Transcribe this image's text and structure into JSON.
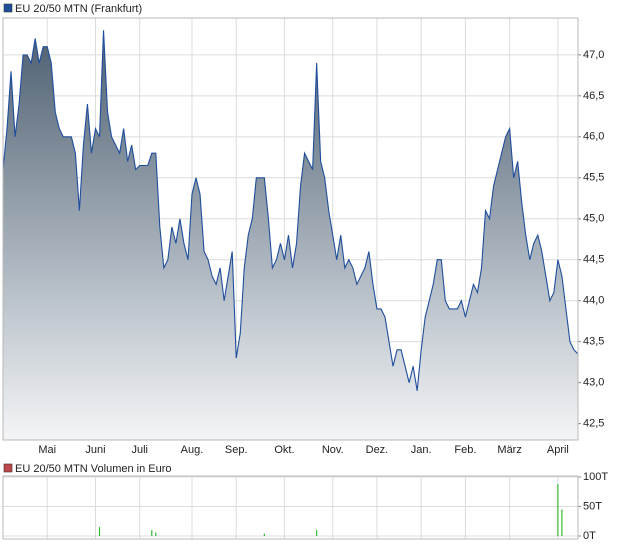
{
  "chart_data": [
    {
      "type": "area",
      "categories": [
        null,
        null,
        null,
        null,
        null,
        null,
        null,
        null,
        null,
        null,
        null,
        "Mai",
        null,
        null,
        null,
        null,
        null,
        null,
        null,
        null,
        null,
        null,
        null,
        "Juni",
        null,
        null,
        null,
        null,
        null,
        null,
        null,
        null,
        null,
        null,
        "Juli",
        null,
        null,
        null,
        null,
        null,
        null,
        null,
        null,
        null,
        null,
        null,
        null,
        "Aug.",
        null,
        null,
        null,
        null,
        null,
        null,
        null,
        null,
        null,
        null,
        "Sep.",
        null,
        null,
        null,
        null,
        null,
        null,
        null,
        null,
        null,
        null,
        null,
        "Okt.",
        null,
        null,
        null,
        null,
        null,
        null,
        null,
        null,
        null,
        null,
        null,
        "Nov.",
        null,
        null,
        null,
        null,
        null,
        null,
        null,
        null,
        null,
        null,
        "Dez.",
        null,
        null,
        null,
        null,
        null,
        null,
        null,
        null,
        null,
        null,
        "Jan.",
        null,
        null,
        null,
        null,
        null,
        null,
        null,
        null,
        null,
        null,
        "Feb.",
        null,
        null,
        null,
        null,
        null,
        null,
        null,
        null,
        null,
        null,
        "März",
        null,
        null,
        null,
        null,
        null,
        null,
        null,
        null,
        null,
        null,
        null,
        "April",
        null,
        null,
        null,
        null,
        null
      ],
      "series": [
        {
          "name": "EU 20/50 MTN (Frankfurt)",
          "color": "#1f4e9c",
          "values": [
            45.6,
            46.1,
            46.8,
            46.0,
            46.4,
            47.0,
            47.0,
            46.9,
            47.2,
            46.9,
            47.1,
            47.1,
            46.9,
            46.3,
            46.1,
            46.0,
            46.0,
            46.0,
            45.8,
            45.1,
            45.9,
            46.4,
            45.8,
            46.1,
            46.0,
            47.3,
            46.3,
            46.0,
            45.9,
            45.8,
            46.1,
            45.7,
            45.9,
            45.6,
            45.65,
            45.65,
            45.65,
            45.8,
            45.8,
            44.9,
            44.4,
            44.5,
            44.9,
            44.7,
            45.0,
            44.7,
            44.5,
            45.3,
            45.5,
            45.3,
            44.6,
            44.5,
            44.3,
            44.2,
            44.4,
            44.0,
            44.3,
            44.6,
            43.3,
            43.6,
            44.4,
            44.8,
            45.0,
            45.5,
            45.5,
            45.5,
            45.0,
            44.4,
            44.5,
            44.7,
            44.5,
            44.8,
            44.4,
            44.7,
            45.4,
            45.8,
            45.7,
            45.6,
            46.9,
            45.7,
            45.5,
            45.1,
            44.8,
            44.5,
            44.8,
            44.4,
            44.5,
            44.4,
            44.2,
            44.3,
            44.4,
            44.6,
            44.2,
            43.9,
            43.9,
            43.8,
            43.5,
            43.2,
            43.4,
            43.4,
            43.2,
            43.0,
            43.2,
            42.9,
            43.4,
            43.8,
            44.0,
            44.2,
            44.5,
            44.5,
            44.0,
            43.9,
            43.9,
            43.9,
            44.0,
            43.8,
            44.0,
            44.2,
            44.1,
            44.4,
            45.1,
            45.0,
            45.4,
            45.6,
            45.8,
            46.0,
            46.1,
            45.5,
            45.7,
            45.2,
            44.8,
            44.5,
            44.7,
            44.8,
            44.6,
            44.3,
            44.0,
            44.1,
            44.5,
            44.3,
            43.9,
            43.5,
            43.4,
            43.35
          ]
        }
      ],
      "ylim": [
        42.3,
        47.45
      ],
      "yticks": [
        {
          "value": 42.5,
          "label": "42,5"
        },
        {
          "value": 43,
          "label": "43,0"
        },
        {
          "value": 43.5,
          "label": "43,5"
        },
        {
          "value": 44,
          "label": "44,0"
        },
        {
          "value": 44.5,
          "label": "44,5"
        },
        {
          "value": 45,
          "label": "45,0"
        },
        {
          "value": 45.5,
          "label": "45,5"
        },
        {
          "value": 46,
          "label": "46,0"
        },
        {
          "value": 46.5,
          "label": "46,5"
        },
        {
          "value": 47,
          "label": "47,0"
        }
      ],
      "grid": true
    },
    {
      "type": "bar",
      "series": [
        {
          "name": "EU 20/50 MTN Volumen in Euro",
          "color": "#33bb33",
          "legend_color": "#c04848",
          "values": [
            0,
            0,
            0,
            0,
            0,
            0,
            0,
            0,
            0,
            0,
            0,
            0,
            0,
            0,
            0,
            0,
            0,
            0,
            0,
            0,
            0,
            0,
            0,
            0,
            15,
            0,
            0,
            0,
            0,
            0,
            0,
            0,
            0,
            0,
            0,
            0,
            0,
            10,
            6,
            0,
            0,
            0,
            0,
            0,
            0,
            0,
            0,
            0,
            0,
            0,
            0,
            0,
            0,
            0,
            0,
            0,
            0,
            0,
            0,
            0,
            0,
            0,
            0,
            0,
            0,
            4,
            0,
            0,
            0,
            0,
            0,
            0,
            0,
            0,
            0,
            0,
            0,
            0,
            10,
            0,
            0,
            0,
            0,
            0,
            0,
            0,
            0,
            0,
            0,
            0,
            0,
            0,
            0,
            0,
            0,
            0,
            0,
            0,
            0,
            0,
            0,
            0,
            0,
            0,
            0,
            0,
            0,
            0,
            0,
            0,
            0,
            0,
            0,
            0,
            0,
            0,
            0,
            0,
            0,
            0,
            0,
            0,
            0,
            0,
            0,
            0,
            0,
            0,
            0,
            0,
            0,
            0,
            0,
            0,
            0,
            0,
            0,
            0,
            88,
            45,
            0,
            0,
            0,
            0
          ]
        }
      ],
      "ylim": [
        0,
        100
      ],
      "yticks": [
        {
          "value": 0,
          "label": "0T"
        },
        {
          "value": 50,
          "label": "50T"
        },
        {
          "value": 100,
          "label": "100T"
        }
      ],
      "grid": true
    }
  ]
}
